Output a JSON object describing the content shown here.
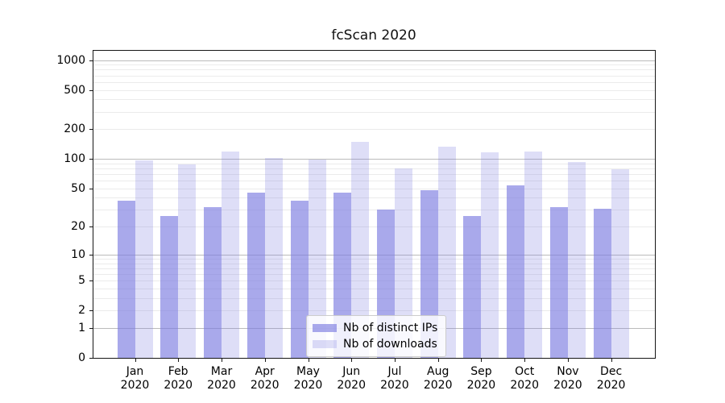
{
  "title": "fcScan 2020",
  "legend": {
    "items": [
      {
        "label": "Nb of distinct IPs",
        "color": "rgba(123,123,225,0.65)"
      },
      {
        "label": "Nb of downloads",
        "color": "rgba(123,123,225,0.25)"
      }
    ]
  },
  "chart_data": {
    "type": "bar",
    "title": "fcScan 2020",
    "categories": [
      "Jan 2020",
      "Feb 2020",
      "Mar 2020",
      "Apr 2020",
      "May 2020",
      "Jun 2020",
      "Jul 2020",
      "Aug 2020",
      "Sep 2020",
      "Oct 2020",
      "Nov 2020",
      "Dec 2020"
    ],
    "series": [
      {
        "name": "Nb of distinct IPs",
        "color": "rgba(123,123,225,0.65)",
        "values": [
          37,
          26,
          32,
          45,
          37,
          45,
          30,
          48,
          26,
          54,
          32,
          31
        ]
      },
      {
        "name": "Nb of downloads",
        "color": "rgba(123,123,225,0.25)",
        "values": [
          96,
          88,
          118,
          102,
          99,
          150,
          80,
          133,
          116,
          119,
          93,
          78
        ]
      }
    ],
    "xlabel": "",
    "ylabel": "",
    "yscale": "symlog-log1p",
    "ylim": [
      0,
      1240
    ],
    "yticks": [
      1000,
      500,
      200,
      100,
      50,
      20,
      10,
      5,
      2,
      1,
      0
    ],
    "grid": true,
    "gridline_values_minor": [
      2,
      3,
      4,
      5,
      6,
      7,
      8,
      9,
      20,
      30,
      40,
      50,
      60,
      70,
      80,
      90,
      200,
      300,
      400,
      500,
      600,
      700,
      800,
      900
    ],
    "gridline_values_major": [
      1,
      10,
      100,
      1000
    ],
    "legend_position": "bottom-center-inside"
  },
  "colors": {
    "bar_dark": "rgba(123,123,225,0.65)",
    "bar_light": "rgba(123,123,225,0.25)",
    "grid_major": "#bbbbbb",
    "grid_minor": "#ebebeb",
    "spine": "#161616",
    "background": "#ffffff"
  }
}
